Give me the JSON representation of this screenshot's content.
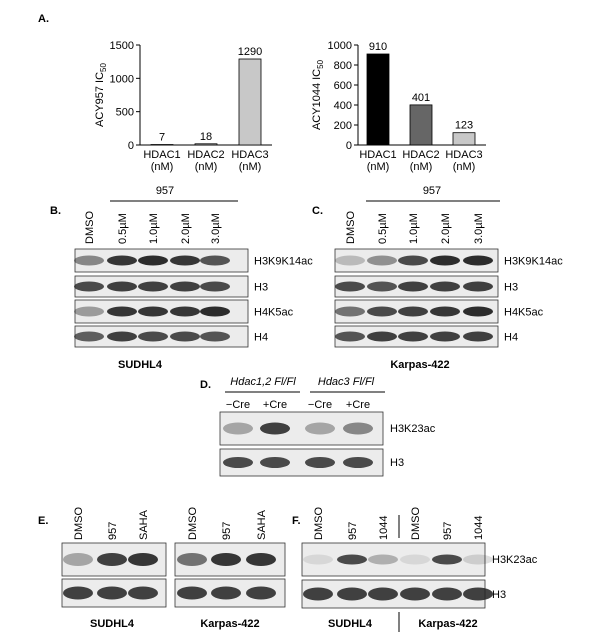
{
  "panel_labels": {
    "a": "A.",
    "b": "B.",
    "c": "C.",
    "d": "D.",
    "e": "E.",
    "f": "F."
  },
  "chart_data": [
    {
      "type": "bar",
      "y_label": "ACY957 IC",
      "y_label_subscript": "50",
      "categories": [
        "HDAC1 (nM)",
        "HDAC2 (nM)",
        "HDAC3 (nM)"
      ],
      "values": [
        7,
        18,
        1290
      ],
      "colors": [
        "#c8c8c8",
        "#c8c8c8",
        "#c8c8c8"
      ],
      "ylim": [
        0,
        1500
      ],
      "yticks": [
        0,
        500,
        1000,
        1500
      ]
    },
    {
      "type": "bar",
      "y_label": "ACY1044 IC",
      "y_label_subscript": "50",
      "categories": [
        "HDAC1 (nM)",
        "HDAC2 (nM)",
        "HDAC3 (nM)"
      ],
      "values": [
        910,
        401,
        123
      ],
      "colors": [
        "#000000",
        "#666666",
        "#c8c8c8"
      ],
      "ylim": [
        0,
        1000
      ],
      "yticks": [
        0,
        200,
        400,
        600,
        800,
        1000
      ]
    }
  ],
  "blots": {
    "b": {
      "treatment": "957",
      "lanes": [
        "DMSO",
        "0.5µM",
        "1.0µM",
        "2.0µM",
        "3.0µM"
      ],
      "rows": [
        "H3K9K14ac",
        "H3",
        "H4K5ac",
        "H4"
      ],
      "cell_line": "SUDHL4"
    },
    "c": {
      "treatment": "957",
      "lanes": [
        "DMSO",
        "0.5µM",
        "1.0µM",
        "2.0µM",
        "3.0µM"
      ],
      "rows": [
        "H3K9K14ac",
        "H3",
        "H4K5ac",
        "H4"
      ],
      "cell_line": "Karpas-422"
    },
    "d": {
      "groups": [
        "Hdac1,2 Fl/Fl",
        "Hdac3 Fl/Fl"
      ],
      "lanes": [
        "−Cre",
        "+Cre",
        "−Cre",
        "+Cre"
      ],
      "rows": [
        "H3K23ac",
        "H3"
      ]
    },
    "e": {
      "lanes": [
        "DMSO",
        "957",
        "SAHA",
        "DMSO",
        "957",
        "SAHA"
      ],
      "cell_lines": [
        "SUDHL4",
        "Karpas-422"
      ]
    },
    "f": {
      "lanes": [
        "DMSO",
        "957",
        "1044",
        "DMSO",
        "957",
        "1044"
      ],
      "rows": [
        "H3K23ac",
        "H3"
      ],
      "cell_lines": [
        "SUDHL4",
        "Karpas-422"
      ]
    }
  }
}
